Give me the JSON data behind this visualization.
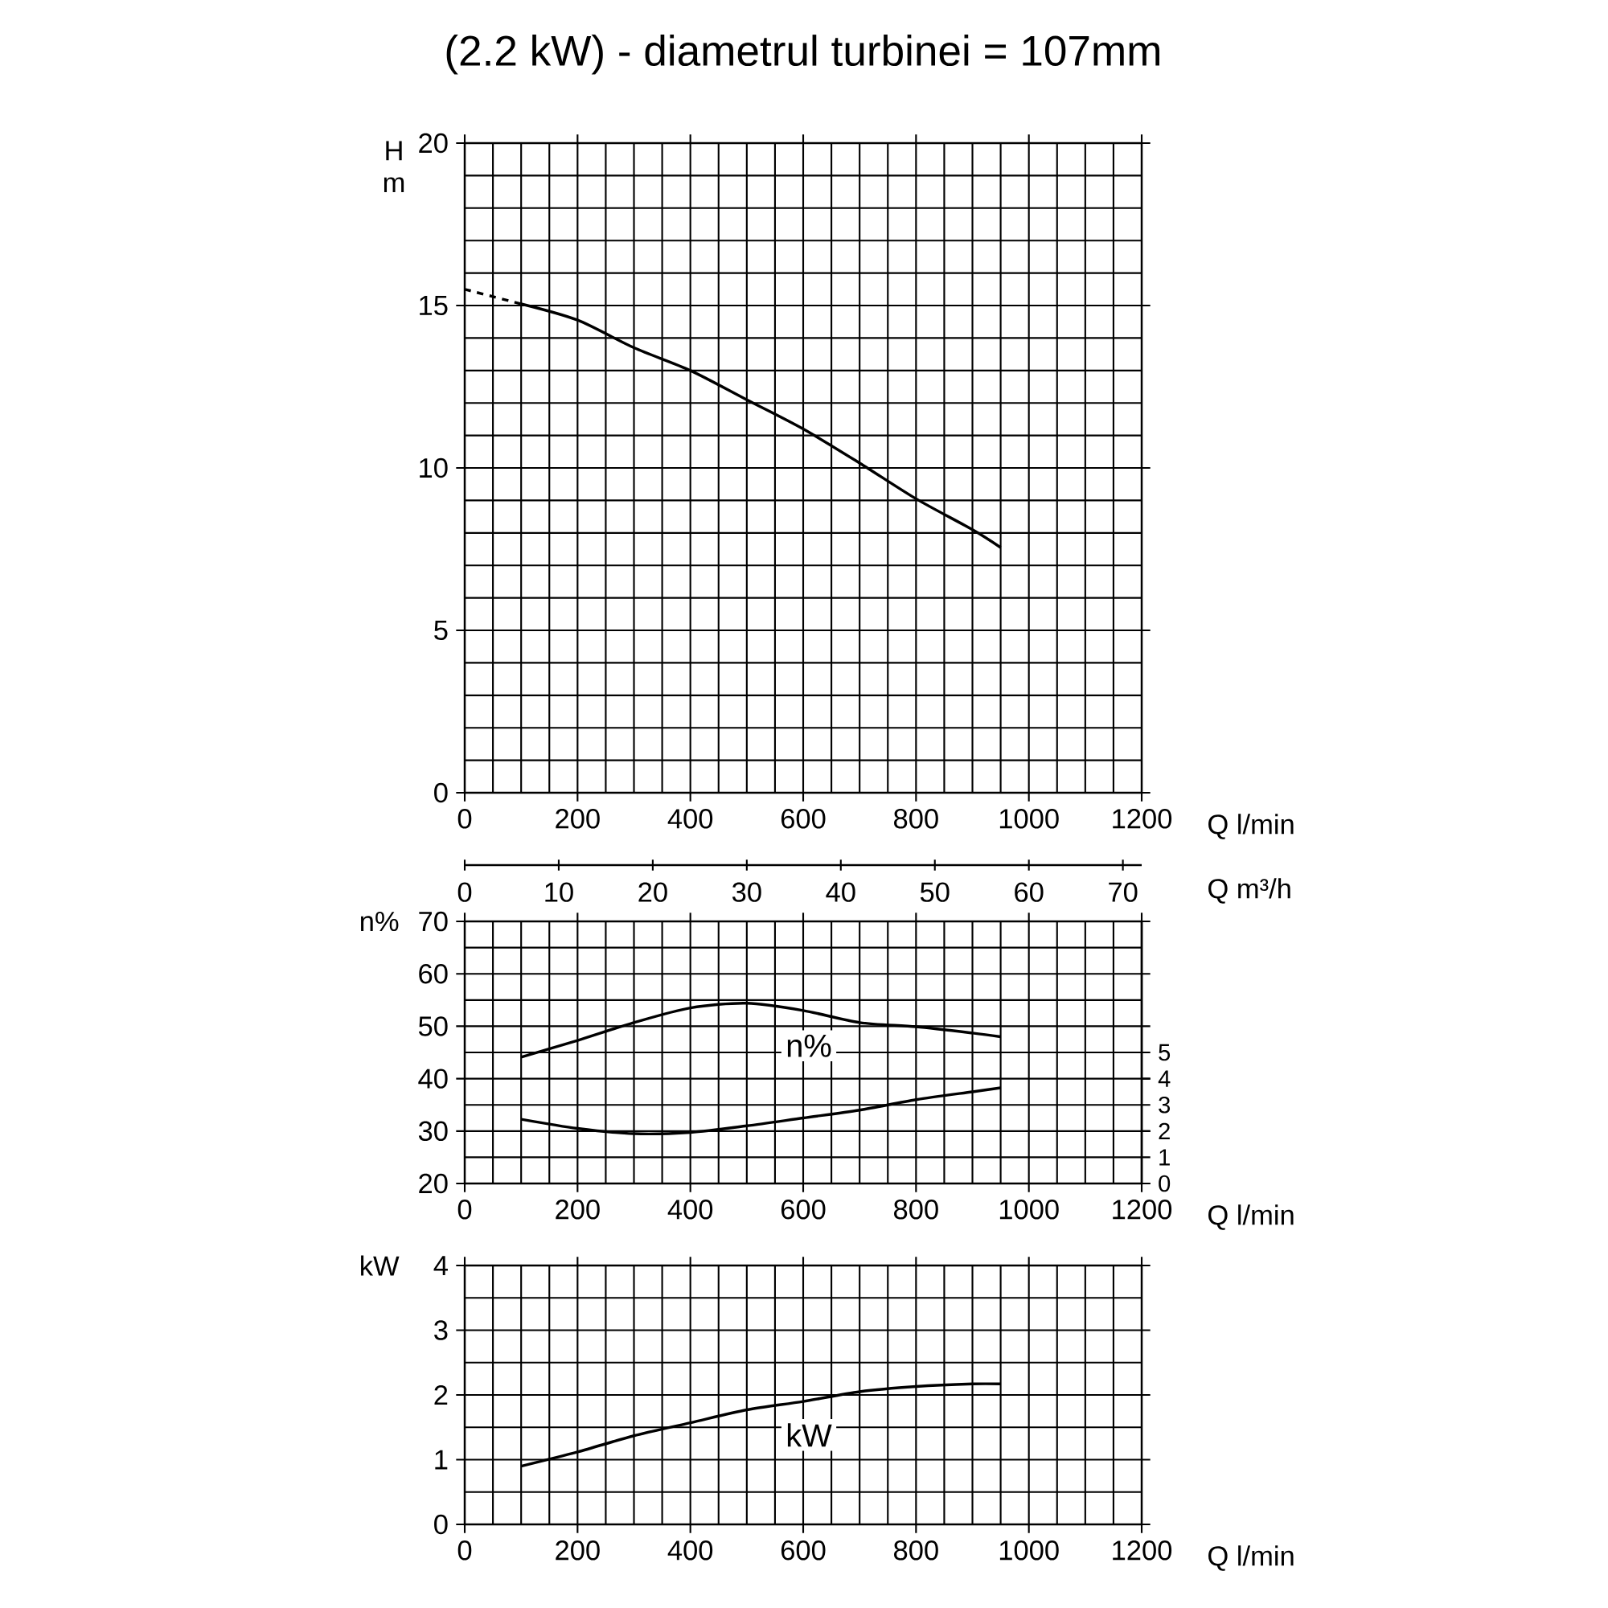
{
  "chart_data": [
    {
      "type": "line",
      "title": "(2.2 kW) - diametrul turbinei = 107mm",
      "xlabel": "Q l/min",
      "ylabel": "H m",
      "xlim": [
        0,
        1200
      ],
      "xticks": [
        0,
        200,
        400,
        600,
        800,
        1000,
        1200
      ],
      "ylim": [
        0,
        20
      ],
      "yticks": [
        0,
        5,
        10,
        15,
        20
      ],
      "grid": true,
      "series": [
        {
          "color": "#000000",
          "line_style": "dashed",
          "x": [
            0,
            100
          ],
          "values": [
            15.5,
            15.05
          ]
        },
        {
          "color": "#000000",
          "line_style": "solid",
          "x": [
            100,
            200,
            300,
            400,
            500,
            600,
            700,
            800,
            900,
            950
          ],
          "values": [
            15.05,
            14.55,
            13.7,
            13.0,
            12.1,
            11.2,
            10.15,
            9.05,
            8.1,
            7.55
          ]
        }
      ]
    },
    {
      "type": "line",
      "xlabel": "Q l/min",
      "ylabel": "n%",
      "x2label": "Q m³/h",
      "xlim": [
        0,
        1200
      ],
      "xticks": [
        0,
        200,
        400,
        600,
        800,
        1000,
        1200
      ],
      "x2lim": [
        0,
        72
      ],
      "x2ticks": [
        0,
        10,
        20,
        30,
        40,
        50,
        60,
        70
      ],
      "ylim": [
        20,
        70
      ],
      "yticks": [
        20,
        30,
        40,
        50,
        60,
        70
      ],
      "y2lim": [
        0,
        10
      ],
      "y2ticks": [
        0,
        1,
        2,
        3,
        4,
        5
      ],
      "grid": true,
      "series": [
        {
          "name": "n%",
          "color": "#000000",
          "x": [
            100,
            200,
            300,
            400,
            500,
            600,
            700,
            800,
            900,
            950
          ],
          "values": [
            44.1,
            47.3,
            50.7,
            53.5,
            54.4,
            53.0,
            50.7,
            49.9,
            48.7,
            48.0
          ]
        },
        {
          "color": "#000000",
          "axis": "y2",
          "x": [
            100,
            200,
            300,
            400,
            500,
            600,
            700,
            800,
            900,
            950
          ],
          "values": [
            2.45,
            2.1,
            1.9,
            1.95,
            2.2,
            2.5,
            2.8,
            3.2,
            3.5,
            3.65
          ]
        }
      ]
    },
    {
      "type": "line",
      "xlabel": "Q l/min",
      "ylabel": "kW",
      "xlim": [
        0,
        1200
      ],
      "xticks": [
        0,
        200,
        400,
        600,
        800,
        1000,
        1200
      ],
      "ylim": [
        0,
        4
      ],
      "yticks": [
        0,
        1,
        2,
        3,
        4
      ],
      "grid": true,
      "series": [
        {
          "name": "kW",
          "color": "#000000",
          "x": [
            100,
            200,
            300,
            400,
            500,
            600,
            700,
            800,
            900,
            950
          ],
          "values": [
            0.9,
            1.12,
            1.37,
            1.57,
            1.77,
            1.9,
            2.05,
            2.13,
            2.17,
            2.17
          ]
        }
      ]
    }
  ]
}
